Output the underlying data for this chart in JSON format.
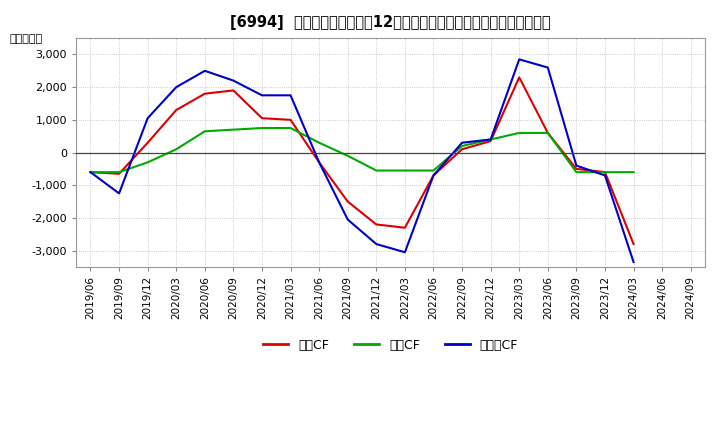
{
  "title": "[6994]  キャッシュフローの12か月移動合計の対前年同期増減額の推移",
  "ylabel": "（百万円）",
  "background_color": "#ffffff",
  "plot_background": "#ffffff",
  "grid_color": "#aaaaaa",
  "ylim": [
    -3500,
    3500
  ],
  "yticks": [
    -3000,
    -2000,
    -1000,
    0,
    1000,
    2000,
    3000
  ],
  "x_labels": [
    "2019/06",
    "2019/09",
    "2019/12",
    "2020/03",
    "2020/06",
    "2020/09",
    "2020/12",
    "2021/03",
    "2021/06",
    "2021/09",
    "2021/12",
    "2022/03",
    "2022/06",
    "2022/09",
    "2022/12",
    "2023/03",
    "2023/06",
    "2023/09",
    "2023/12",
    "2024/03",
    "2024/06",
    "2024/09"
  ],
  "series": {
    "営業CF": {
      "color": "#dd0000",
      "values": [
        -600,
        -650,
        300,
        1300,
        1800,
        1900,
        1050,
        1000,
        -300,
        -1500,
        -2200,
        -2300,
        -700,
        100,
        350,
        2300,
        600,
        -500,
        -600,
        -2800,
        null,
        null
      ]
    },
    "投資CF": {
      "color": "#00aa00",
      "values": [
        -600,
        -600,
        -300,
        100,
        650,
        700,
        750,
        750,
        300,
        -100,
        -550,
        -550,
        -550,
        200,
        400,
        600,
        600,
        -600,
        -600,
        -600,
        null,
        null
      ]
    },
    "フリCF": {
      "color": "#0000cc",
      "values": [
        -600,
        -1250,
        1050,
        2000,
        2500,
        2200,
        1750,
        1750,
        -300,
        -2050,
        -2800,
        -3050,
        -700,
        300,
        400,
        2850,
        2600,
        -400,
        -700,
        -3350,
        null,
        null
      ]
    }
  },
  "legend_labels": [
    "営業CF",
    "投資CF",
    "フリーCF"
  ],
  "legend_colors": [
    "#dd0000",
    "#00aa00",
    "#0000cc"
  ],
  "title_fontsize": 10.5,
  "tick_fontsize": 7.5,
  "ylabel_fontsize": 8
}
